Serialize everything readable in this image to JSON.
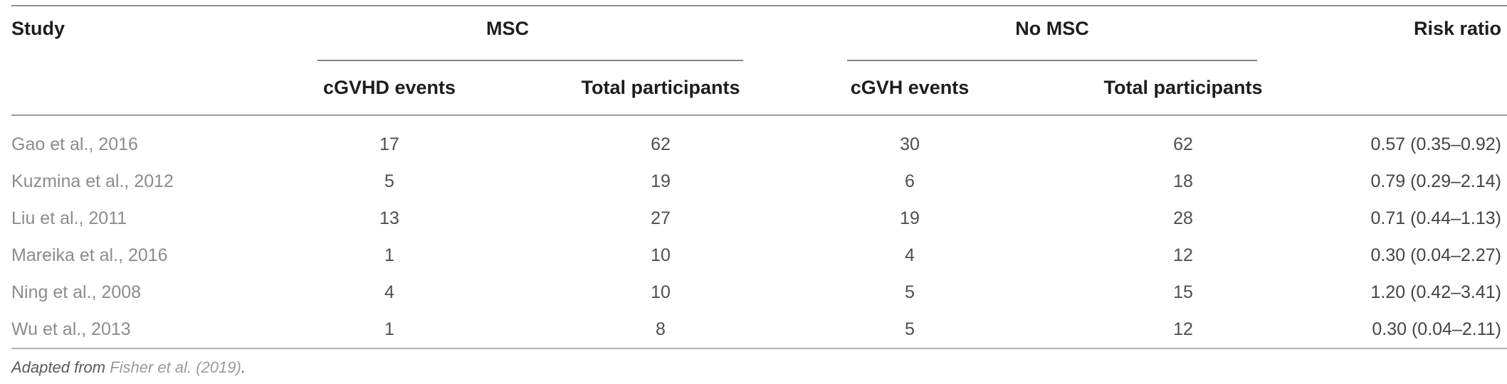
{
  "table": {
    "col_headers": {
      "study": "Study",
      "msc_group": "MSC",
      "no_msc_group": "No MSC",
      "risk_ratio": "Risk ratio",
      "msc_events": "cGVHD events",
      "msc_total": "Total participants",
      "no_msc_events": "cGVH events",
      "no_msc_total": "Total participants"
    },
    "rows": [
      {
        "study": "Gao et al., 2016",
        "msc_events": "17",
        "msc_total": "62",
        "no_msc_events": "30",
        "no_msc_total": "62",
        "risk_ratio": "0.57 (0.35–0.92)"
      },
      {
        "study": "Kuzmina et al., 2012",
        "msc_events": "5",
        "msc_total": "19",
        "no_msc_events": "6",
        "no_msc_total": "18",
        "risk_ratio": "0.79 (0.29–2.14)"
      },
      {
        "study": "Liu et al., 2011",
        "msc_events": "13",
        "msc_total": "27",
        "no_msc_events": "19",
        "no_msc_total": "28",
        "risk_ratio": "0.71 (0.44–1.13)"
      },
      {
        "study": "Mareika et al., 2016",
        "msc_events": "1",
        "msc_total": "10",
        "no_msc_events": "4",
        "no_msc_total": "12",
        "risk_ratio": "0.30 (0.04–2.27)"
      },
      {
        "study": "Ning et al., 2008",
        "msc_events": "4",
        "msc_total": "10",
        "no_msc_events": "5",
        "no_msc_total": "15",
        "risk_ratio": "1.20 (0.42–3.41)"
      },
      {
        "study": "Wu et al., 2013",
        "msc_events": "1",
        "msc_total": "8",
        "no_msc_events": "5",
        "no_msc_total": "12",
        "risk_ratio": "0.30 (0.04–2.11)"
      }
    ]
  },
  "footnote": {
    "prefix": "Adapted from ",
    "citation": "Fisher et al. (2019)",
    "suffix": "."
  },
  "colors": {
    "header_text": "#1e1e1e",
    "study_text": "#8c8c8c",
    "value_text": "#4f4f4f",
    "rule_dark": "#838383",
    "rule_mid": "#9a9a9a",
    "rule_light": "#b2b2b2",
    "citation_text": "#9b9b9b"
  }
}
